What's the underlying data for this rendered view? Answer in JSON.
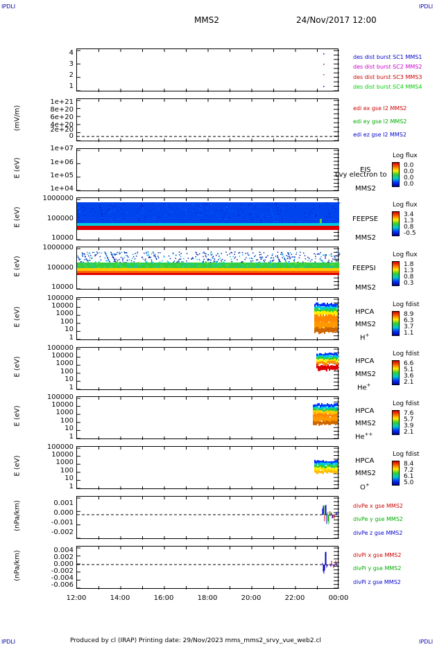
{
  "corners": {
    "tl": "IPDLI",
    "tr": "IPDLI",
    "bl": "IPDLI",
    "br": "IPDLI"
  },
  "header": {
    "spacecraft": "MMS2",
    "datetime": "24/Nov/2017 12:00"
  },
  "xaxis": {
    "ticks": [
      "12:00",
      "14:00",
      "16:00",
      "18:00",
      "20:00",
      "22:00",
      "00:00"
    ]
  },
  "footer": {
    "text": "Produced by cl (IRAP)   Printing date: 29/Nov/2023   mms_mms2_srvy_vue_web2.cl"
  },
  "panels": {
    "p1": {
      "ticks": [
        "4",
        "3",
        "2",
        "1"
      ],
      "legend": [
        "des dist burst SC1 MMS1",
        "des dist burst SC2 MMS2",
        "des dist burst SC3 MMS3",
        "des dist burst SC4 MMS4"
      ],
      "colors": [
        "#0000cc",
        "#cc00cc",
        "#cc0000",
        "#00cc00"
      ]
    },
    "p2": {
      "ylabel": "(mV/m)",
      "ticks": [
        "1e+21",
        "8e+20",
        "6e+20",
        "4e+20",
        "2e+20",
        "0"
      ],
      "legend": [
        "edi ex gse l2 MMS2",
        "edi ey gse l2 MMS2",
        "edi ez gse l2 MMS2"
      ],
      "colors": [
        "#cc0000",
        "#00aa00",
        "#0000cc"
      ]
    },
    "p3": {
      "ylabel": "E (eV)",
      "ticks": [
        "1e+07",
        "1e+06",
        "1e+05",
        "1e+04"
      ],
      "inst": "EIS",
      "overlay": "Lvy electron to",
      "sc": "MMS2",
      "cb_title": "Log flux",
      "cb_ticks": [
        "0.0",
        "0.0",
        "0.0",
        "0.0"
      ]
    },
    "p4": {
      "ylabel": "E (eV)",
      "ticks": [
        "1000000",
        "100000",
        "10000"
      ],
      "inst": "FEEPSE",
      "sc": "MMS2",
      "cb_title": "Log flux",
      "cb_ticks": [
        "3.4",
        "1.3",
        "0.8",
        "-0.5"
      ]
    },
    "p5": {
      "ylabel": "E (eV)",
      "ticks": [
        "1000000",
        "100000",
        "10000"
      ],
      "inst": "FEEPSI",
      "sc": "MMS2",
      "cb_title": "Log flux",
      "cb_ticks": [
        "1.8",
        "1.3",
        "0.8",
        "0.3"
      ]
    },
    "p6": {
      "ylabel": "E (eV)",
      "ticks": [
        "100000",
        "10000",
        "1000",
        "100",
        "10",
        "1"
      ],
      "inst": "HPCA",
      "sc": "MMS2",
      "species": "H",
      "charge": "+",
      "cb_title": "Log fdist",
      "cb_ticks": [
        "8.9",
        "6.3",
        "3.7",
        "1.1"
      ]
    },
    "p7": {
      "ylabel": "E (eV)",
      "ticks": [
        "100000",
        "10000",
        "1000",
        "100",
        "10",
        "1"
      ],
      "inst": "HPCA",
      "sc": "MMS2",
      "species": "He",
      "charge": "+",
      "cb_title": "Log fdist",
      "cb_ticks": [
        "6.6",
        "5.1",
        "3.6",
        "2.1"
      ]
    },
    "p8": {
      "ylabel": "E (eV)",
      "ticks": [
        "100000",
        "10000",
        "1000",
        "100",
        "10",
        "1"
      ],
      "inst": "HPCA",
      "sc": "MMS2",
      "species": "He",
      "charge": "++",
      "cb_title": "Log fdist",
      "cb_ticks": [
        "7.6",
        "5.7",
        "3.9",
        "2.1"
      ]
    },
    "p9": {
      "ylabel": "E (eV)",
      "ticks": [
        "100000",
        "10000",
        "1000",
        "100",
        "10",
        "1"
      ],
      "inst": "HPCA",
      "sc": "MMS2",
      "species": "O",
      "charge": "+",
      "cb_title": "Log fdist",
      "cb_ticks": [
        "8.4",
        "7.2",
        "6.1",
        "5.0"
      ]
    },
    "p10": {
      "ylabel": "(nPa/km)",
      "ticks": [
        "0.001",
        "0.000",
        "-0.001",
        "-0.002"
      ],
      "legend": [
        "divPe x gse MMS2",
        "divPe y gse MMS2",
        "divPe z gse MMS2"
      ],
      "colors": [
        "#cc0000",
        "#00aa00",
        "#0000cc"
      ]
    },
    "p11": {
      "ylabel": "(nPa/km)",
      "ticks": [
        "0.004",
        "0.002",
        "0.000",
        "-0.002",
        "-0.004",
        "-0.006"
      ],
      "legend": [
        "divPi x gse MMS2",
        "divPi y gse MMS2",
        "divPi z gse MMS2"
      ],
      "colors": [
        "#cc0000",
        "#00aa00",
        "#0000cc"
      ]
    }
  },
  "chart_data": {
    "type": "heatmap",
    "x_range": [
      "12:00",
      "00:00"
    ],
    "description_series": [
      {
        "panel": "p1",
        "type": "scatter",
        "x": [
          "23:20"
        ],
        "y": [
          1,
          2,
          3,
          4
        ]
      },
      {
        "panel": "p4",
        "type": "heatmap",
        "name": "FEEPSE",
        "ylim": [
          10000,
          1000000
        ],
        "log_y": true
      },
      {
        "panel": "p5",
        "type": "heatmap",
        "name": "FEEPSI",
        "ylim": [
          10000,
          1000000
        ],
        "log_y": true
      },
      {
        "panel": "p6",
        "type": "heatmap",
        "name": "HPCA H+",
        "ylim": [
          1,
          100000
        ],
        "log_y": true,
        "x_active": [
          "22:50",
          "00:00"
        ]
      },
      {
        "panel": "p7",
        "type": "heatmap",
        "name": "HPCA He+",
        "ylim": [
          1,
          100000
        ],
        "log_y": true,
        "x_active": [
          "23:05",
          "00:00"
        ]
      },
      {
        "panel": "p8",
        "type": "heatmap",
        "name": "HPCA He++",
        "ylim": [
          1,
          100000
        ],
        "log_y": true,
        "x_active": [
          "23:00",
          "00:00"
        ]
      },
      {
        "panel": "p9",
        "type": "heatmap",
        "name": "HPCA O+",
        "ylim": [
          1,
          100000
        ],
        "log_y": true,
        "x_active": [
          "23:00",
          "00:00"
        ]
      },
      {
        "panel": "p10",
        "type": "line",
        "ylim": [
          -0.002,
          0.0015
        ]
      },
      {
        "panel": "p11",
        "type": "line",
        "ylim": [
          -0.006,
          0.005
        ]
      }
    ]
  }
}
